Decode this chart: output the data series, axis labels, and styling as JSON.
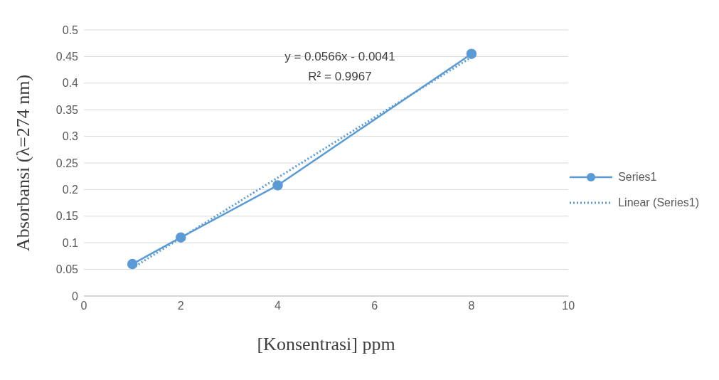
{
  "chart_data": {
    "type": "line",
    "xlabel": "[Konsentrasi] ppm",
    "ylabel": "Absorbansi (λ=274 nm)",
    "x": [
      1,
      2,
      4,
      8
    ],
    "series": [
      {
        "name": "Series1",
        "color": "#5b9bd5",
        "values": [
          0.06,
          0.11,
          0.208,
          0.455
        ],
        "marker": "circle",
        "line_style": "solid"
      },
      {
        "name": "Linear (Series1)",
        "color": "#5b9bd5",
        "x": [
          1,
          8
        ],
        "values": [
          0.0525,
          0.4487
        ],
        "marker": "none",
        "line_style": "dotted"
      }
    ],
    "xlim": [
      0,
      10
    ],
    "xticks": [
      0,
      2,
      4,
      6,
      8,
      10
    ],
    "ylim": [
      0,
      0.5
    ],
    "yticks": [
      0,
      0.05,
      0.1,
      0.15,
      0.2,
      0.25,
      0.3,
      0.35,
      0.4,
      0.45,
      0.5
    ],
    "grid": "y",
    "legend": "right",
    "annotations": [
      "y = 0.0566x - 0.0041",
      "R² = 0.9967"
    ]
  }
}
